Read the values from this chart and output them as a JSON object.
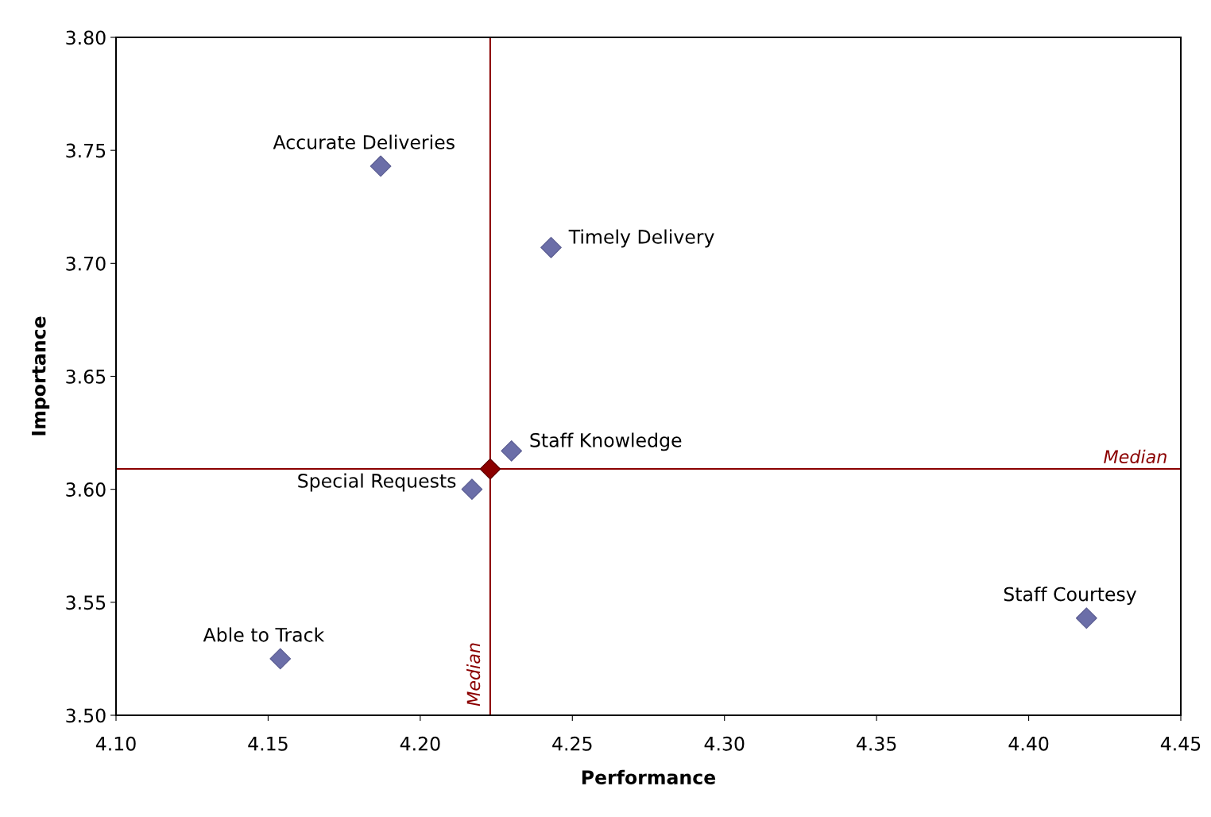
{
  "chart_data": {
    "type": "scatter",
    "xlabel": "Performance",
    "ylabel": "Importance",
    "series": [
      {
        "color": "#6b6ea8",
        "x": [
          4.187,
          4.243,
          4.23,
          4.217,
          4.419,
          4.154
        ],
        "values": [
          3.743,
          3.707,
          3.617,
          3.6,
          3.543,
          3.525
        ]
      },
      {
        "color": "#8b0000",
        "x": [
          4.223
        ],
        "values": [
          3.609
        ]
      }
    ],
    "marker": "diamond",
    "grid": false,
    "legend": false,
    "annotations": [
      {
        "text": "Accurate Deliveries",
        "x": 4.187,
        "y": 3.743
      },
      {
        "text": "Timely Delivery",
        "x": 4.243,
        "y": 3.707
      },
      {
        "text": "Staff Knowledge",
        "x": 4.23,
        "y": 3.617
      },
      {
        "text": "Special Requests",
        "x": 4.217,
        "y": 3.6
      },
      {
        "text": "Staff Courtesy",
        "x": 4.419,
        "y": 3.543
      },
      {
        "text": "Able to Track",
        "x": 4.154,
        "y": 3.525
      }
    ],
    "ref_lines": [
      {
        "axis": "x",
        "value": 4.223,
        "label": "Median",
        "color": "#8b0000"
      },
      {
        "axis": "y",
        "value": 3.609,
        "label": "Median",
        "color": "#8b0000"
      }
    ],
    "xlim": [
      4.1,
      4.45
    ],
    "ylim": [
      3.5,
      3.8
    ],
    "xticks": [
      {
        "value": 4.1,
        "label": "4.10"
      },
      {
        "value": 4.15,
        "label": "4.15"
      },
      {
        "value": 4.2,
        "label": "4.20"
      },
      {
        "value": 4.25,
        "label": "4.25"
      },
      {
        "value": 4.3,
        "label": "4.30"
      },
      {
        "value": 4.35,
        "label": "4.35"
      },
      {
        "value": 4.4,
        "label": "4.40"
      },
      {
        "value": 4.45,
        "label": "4.45"
      }
    ],
    "yticks": [
      {
        "value": 3.5,
        "label": "3.50"
      },
      {
        "value": 3.55,
        "label": "3.55"
      },
      {
        "value": 3.6,
        "label": "3.60"
      },
      {
        "value": 3.65,
        "label": "3.65"
      },
      {
        "value": 3.7,
        "label": "3.70"
      },
      {
        "value": 3.75,
        "label": "3.75"
      },
      {
        "value": 3.8,
        "label": "3.80"
      }
    ]
  }
}
